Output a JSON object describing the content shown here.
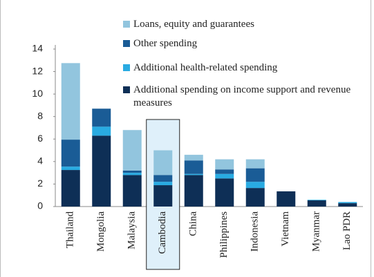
{
  "chart_data": {
    "type": "stacked_bar",
    "categories": [
      "Thailand",
      "Mongolia",
      "Malaysia",
      "Cambodia",
      "China",
      "Philippines",
      "Indonesia",
      "Vietnam",
      "Myanmar",
      "Lao PDR"
    ],
    "series": [
      {
        "name": "Loans, equity and guarantees",
        "color": "#92c5de",
        "values": [
          6.8,
          0,
          3.6,
          2.2,
          0.5,
          0.9,
          0.8,
          0,
          0,
          0
        ]
      },
      {
        "name": "Other spending",
        "color": "#1a5c96",
        "values": [
          2.4,
          1.6,
          0.2,
          0.6,
          1.2,
          0.4,
          1.2,
          0,
          0,
          0
        ]
      },
      {
        "name": "Additional health-related spending",
        "color": "#29abe2",
        "values": [
          0.3,
          0.8,
          0.2,
          0.3,
          0.1,
          0.4,
          0.55,
          0,
          0.05,
          0.1
        ]
      },
      {
        "name": "Additional spending on income support and revenue measures",
        "color": "#0e2f56",
        "values": [
          3.25,
          6.3,
          2.8,
          1.9,
          2.8,
          2.5,
          1.65,
          1.35,
          0.55,
          0.3
        ]
      }
    ],
    "ylim": [
      0,
      14
    ],
    "yticks": [
      0,
      2,
      4,
      6,
      8,
      10,
      12,
      14
    ],
    "highlight": "Cambodia"
  }
}
